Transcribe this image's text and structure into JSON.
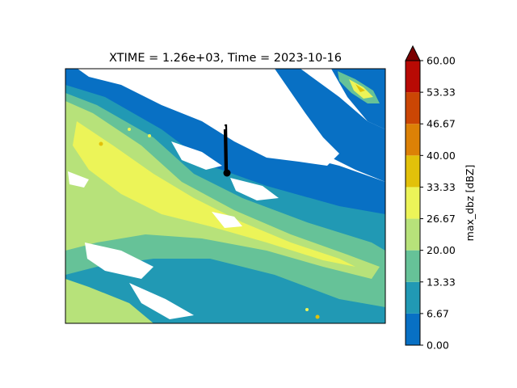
{
  "chart_data": {
    "type": "heatmap",
    "title": "XTIME = 1.26e+03, Time = 2023-10-16",
    "xlabel": "",
    "ylabel": "",
    "colorbar": {
      "label": "max_dbz [dBZ]",
      "extend": "max",
      "levels": [
        0.0,
        6.67,
        13.33,
        20.0,
        26.67,
        33.33,
        40.0,
        46.67,
        53.33,
        60.0
      ],
      "tick_labels": [
        "0.00",
        "6.67",
        "13.33",
        "20.00",
        "26.67",
        "33.33",
        "40.00",
        "46.67",
        "53.33",
        "60.00"
      ],
      "colors": [
        "#0870c4",
        "#2199b4",
        "#66c298",
        "#b7e27a",
        "#ecf458",
        "#e2c10a",
        "#dc8106",
        "#cb4604",
        "#b80a04"
      ],
      "over_color": "#7a0000"
    },
    "grid": false,
    "axes_ticks": false,
    "annotations": [
      {
        "kind": "track-line",
        "color": "#000000"
      },
      {
        "kind": "marker",
        "shape": "circle",
        "color": "#000000"
      }
    ]
  }
}
